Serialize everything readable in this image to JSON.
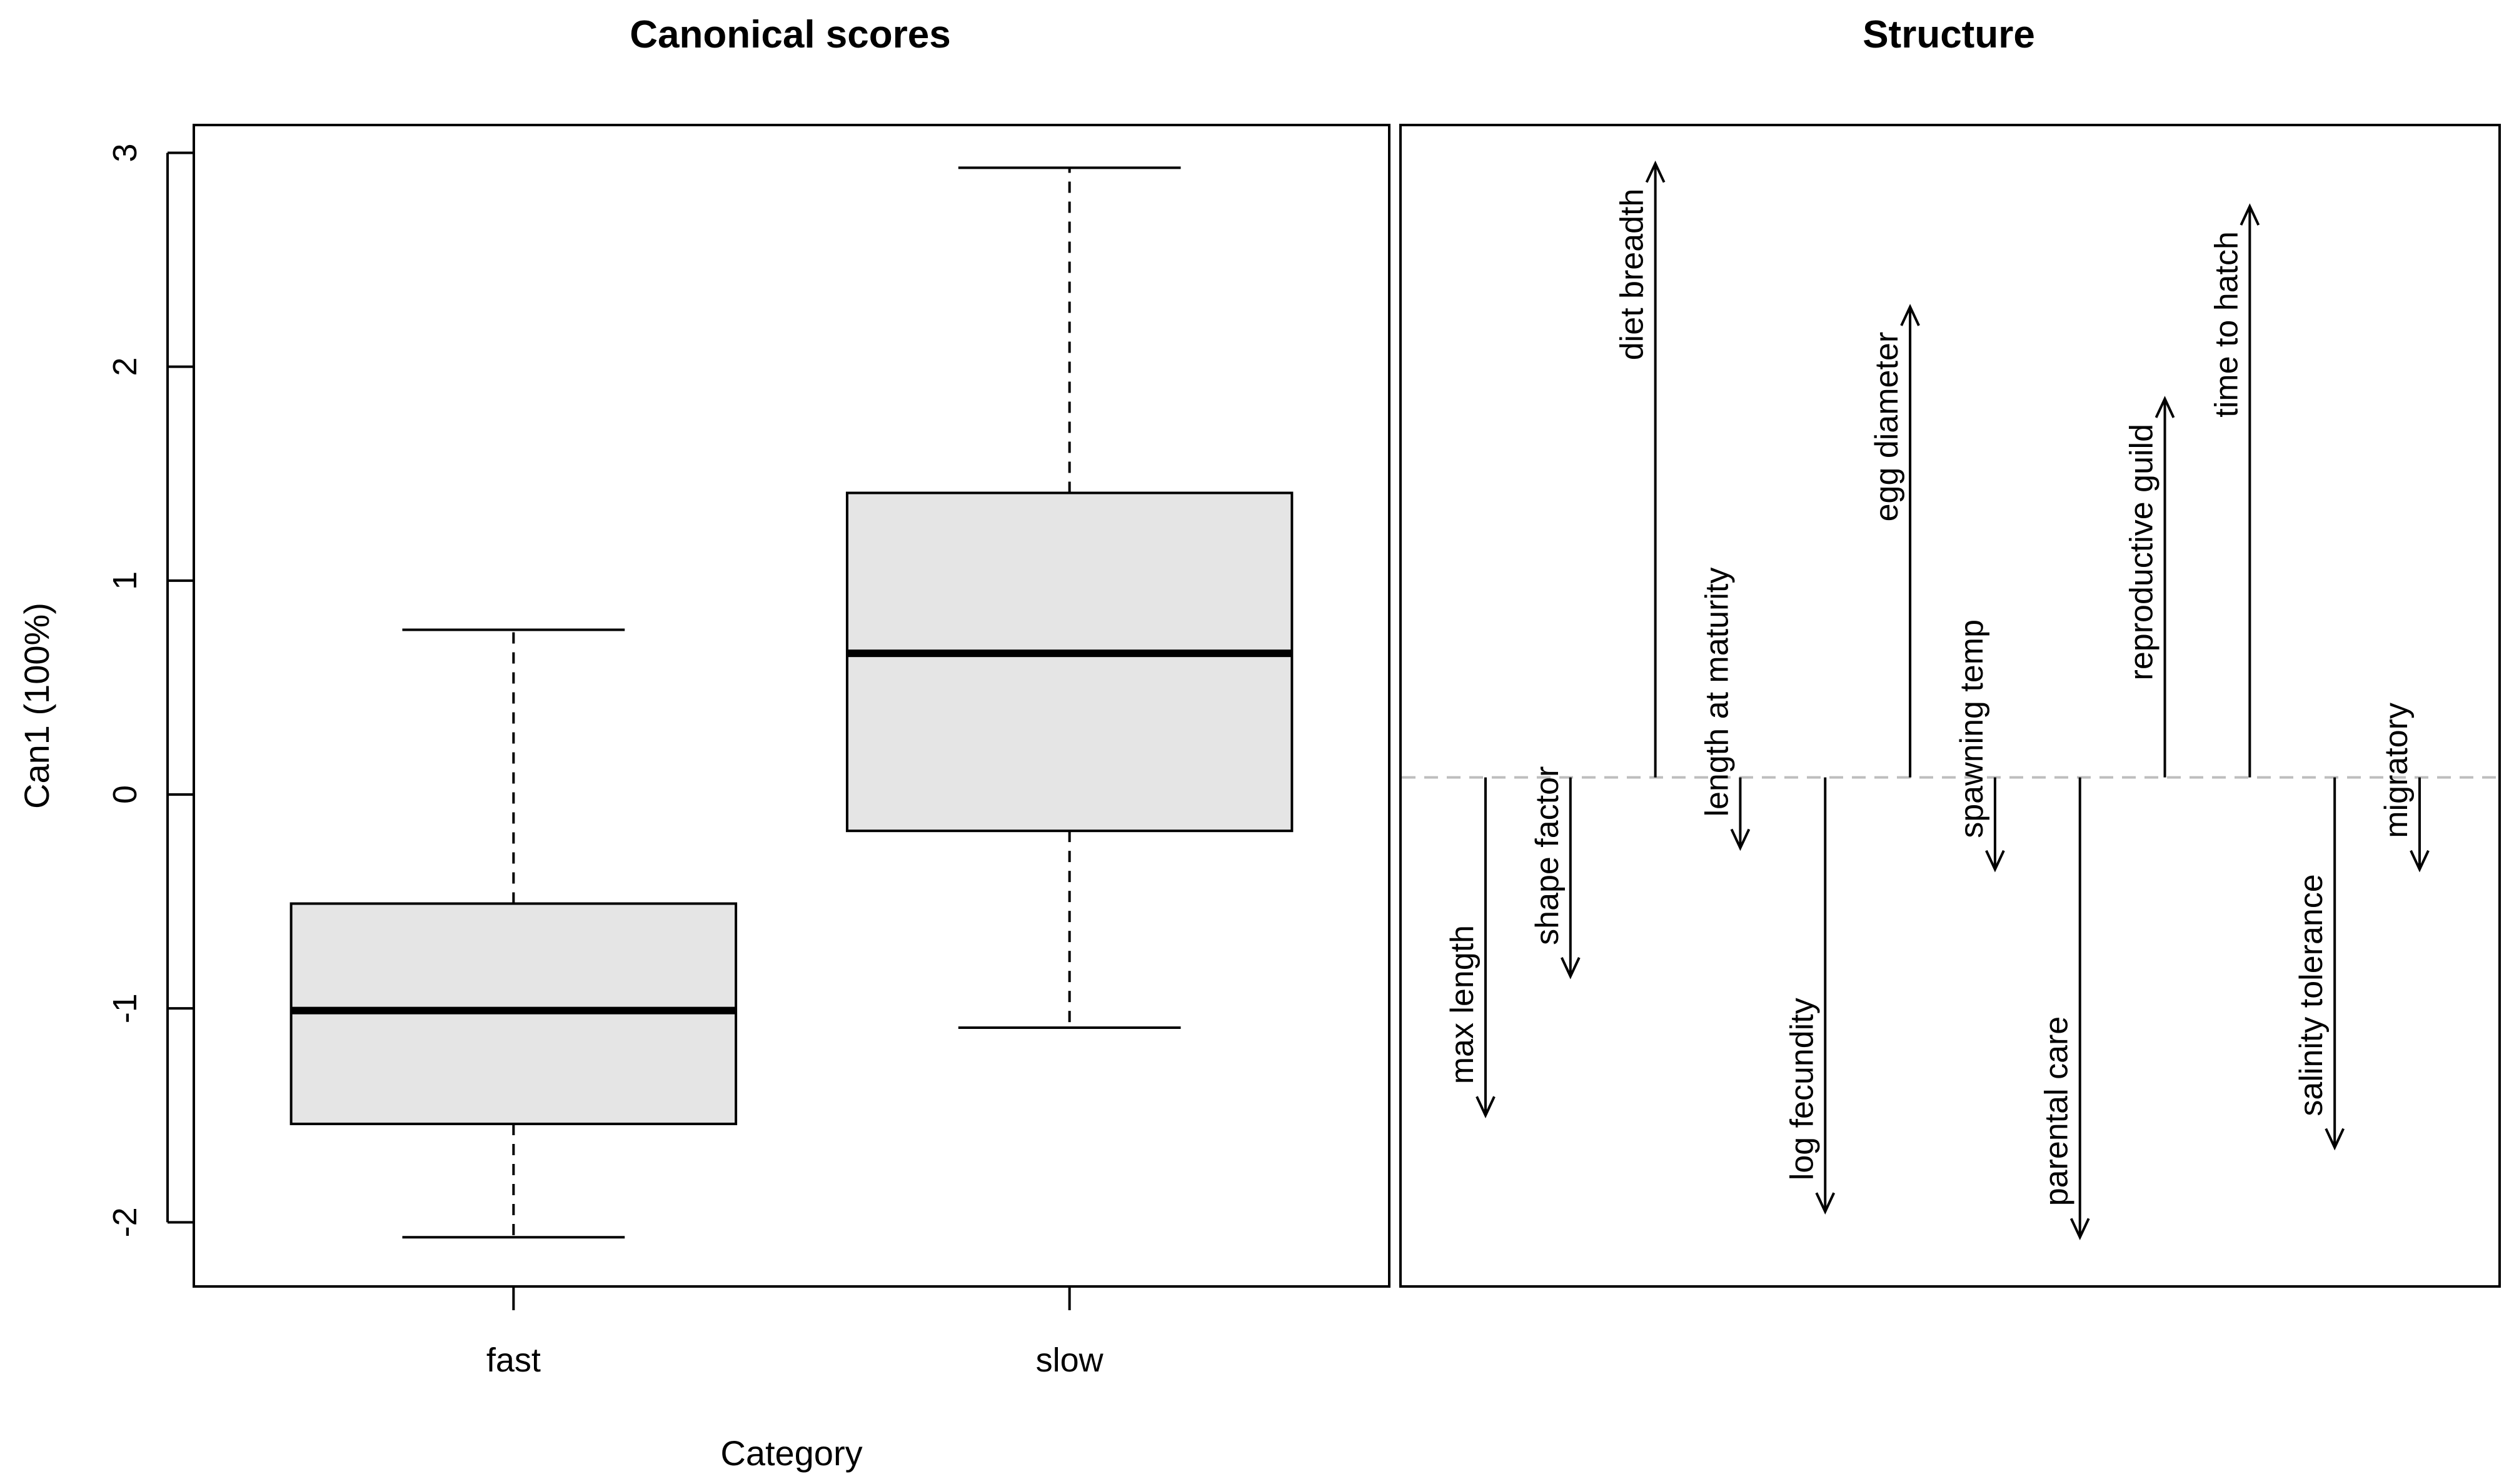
{
  "chart_data": [
    {
      "type": "boxplot",
      "title": "Canonical scores",
      "xlabel": "Category",
      "ylabel": "Can1 (100%)",
      "ylim": [
        -2.3,
        3.13
      ],
      "yticks": [
        -2,
        -1,
        0,
        1,
        2,
        3
      ],
      "ytick_labels": [
        "-2",
        "-1",
        "0",
        "1",
        "2",
        "3"
      ],
      "fill_color": "#e5e5e5",
      "categories": [
        "fast",
        "slow"
      ],
      "boxes": [
        {
          "category": "fast",
          "whisker_low": -2.07,
          "q1": -1.54,
          "median": -1.01,
          "q3": -0.51,
          "whisker_high": 0.77
        },
        {
          "category": "slow",
          "whisker_low": -1.09,
          "q1": -0.17,
          "median": 0.66,
          "q3": 1.41,
          "whisker_high": 2.93
        }
      ]
    },
    {
      "type": "structure-arrows",
      "title": "Structure",
      "ylim": [
        -2.3,
        3.13
      ],
      "baseline": 0.08,
      "variables": [
        {
          "name": "max length",
          "value": -1.5
        },
        {
          "name": "shape factor",
          "value": -0.85
        },
        {
          "name": "diet breadth",
          "value": 2.95
        },
        {
          "name": "length at maturity",
          "value": -0.25
        },
        {
          "name": "log fecundity",
          "value": -1.95
        },
        {
          "name": "egg diameter",
          "value": 2.28
        },
        {
          "name": "spawning temp",
          "value": -0.35
        },
        {
          "name": "parental care",
          "value": -2.07
        },
        {
          "name": "reproductive guild",
          "value": 1.85
        },
        {
          "name": "time to hatch",
          "value": 2.75
        },
        {
          "name": "salinity tolerance",
          "value": -1.65
        },
        {
          "name": "migratory",
          "value": -0.35
        }
      ]
    }
  ]
}
